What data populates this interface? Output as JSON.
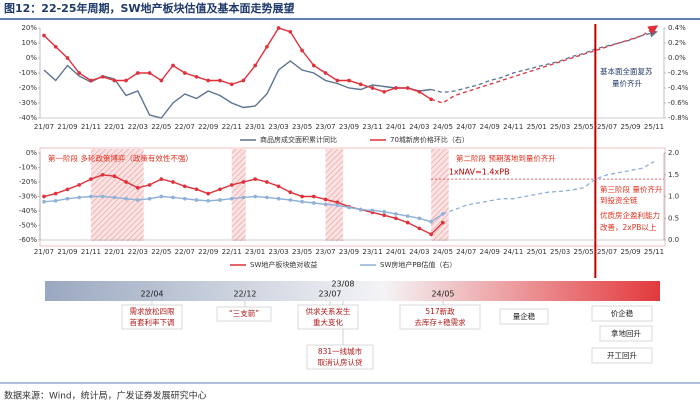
{
  "header": {
    "title": "图12：22-25年周期，SW地产板块估值及基本面走势展望"
  },
  "chart_data": [
    {
      "type": "line",
      "categories": [
        "21/07",
        null,
        "21/09",
        null,
        "21/11",
        null,
        "22/01",
        null,
        "22/03",
        null,
        "22/05",
        null,
        "22/07",
        null,
        "22/09",
        null,
        "22/11",
        null,
        "23/01",
        null,
        "23/03",
        null,
        "23/05",
        null,
        "23/07",
        null,
        "23/09",
        null,
        "23/11",
        null,
        "24/01",
        null,
        "24/03",
        null,
        "24/05",
        null,
        "24/07",
        null,
        "24/09",
        null,
        "24/11",
        null,
        "25/01",
        null,
        "25/03",
        null,
        "25/05",
        null,
        "25/07",
        null,
        "25/09",
        null,
        "25/11"
      ],
      "series": [
        {
          "name": "商品房成交面积累计同比",
          "color": "#5a7391",
          "values": [
            -8,
            -15,
            -5,
            -12,
            -16,
            -12,
            -14,
            -25,
            -22,
            -38,
            -40,
            -30,
            -24,
            -27,
            -22,
            -25,
            -30,
            -33,
            -32,
            -24,
            -8,
            -2,
            -8,
            -10,
            -15,
            -17,
            -20,
            -21,
            -18,
            -19,
            -20,
            -20,
            -22,
            -21,
            null,
            null,
            null,
            null,
            null,
            null,
            null,
            null,
            null,
            null,
            null,
            null,
            null,
            null,
            null,
            null,
            null,
            null,
            null
          ],
          "forecast": [
            null,
            null,
            null,
            null,
            null,
            null,
            null,
            null,
            null,
            null,
            null,
            null,
            null,
            null,
            null,
            null,
            null,
            null,
            null,
            null,
            null,
            null,
            null,
            null,
            null,
            null,
            null,
            null,
            null,
            null,
            null,
            null,
            null,
            -21,
            -23,
            -22,
            -20,
            -18,
            -15,
            -13,
            -10,
            -8,
            -6,
            -4,
            -2,
            1,
            3,
            6,
            8,
            10,
            12,
            15,
            17
          ]
        },
        {
          "name": "70城新房价格环比（右）",
          "color": "#e0303a",
          "axis": "y2",
          "values": [
            0.3,
            0.15,
            0,
            -0.2,
            -0.3,
            -0.25,
            -0.3,
            -0.3,
            -0.2,
            -0.2,
            -0.3,
            -0.1,
            -0.2,
            -0.25,
            -0.3,
            -0.3,
            -0.35,
            -0.3,
            -0.1,
            0.15,
            0.4,
            0.35,
            0.1,
            -0.1,
            -0.2,
            -0.3,
            -0.3,
            -0.35,
            -0.4,
            -0.45,
            -0.4,
            -0.4,
            -0.45,
            -0.55,
            null,
            null,
            null,
            null,
            null,
            null,
            null,
            null,
            null,
            null,
            null,
            null,
            null,
            null,
            null,
            null,
            null,
            null,
            null
          ],
          "forecast": [
            null,
            null,
            null,
            null,
            null,
            null,
            null,
            null,
            null,
            null,
            null,
            null,
            null,
            null,
            null,
            null,
            null,
            null,
            null,
            null,
            null,
            null,
            null,
            null,
            null,
            null,
            null,
            null,
            null,
            null,
            null,
            null,
            null,
            -0.55,
            -0.6,
            -0.5,
            -0.45,
            -0.4,
            -0.35,
            -0.3,
            -0.25,
            -0.2,
            -0.15,
            -0.1,
            -0.05,
            0,
            0.05,
            0.1,
            0.15,
            0.2,
            0.25,
            0.3,
            0.4
          ]
        }
      ],
      "ylim": [
        -40,
        20
      ],
      "yticks": [
        {
          "value": -40,
          "label": "-40%"
        },
        {
          "value": -30,
          "label": "-30%"
        },
        {
          "value": -20,
          "label": "-20%"
        },
        {
          "value": -10,
          "label": "-10%"
        },
        {
          "value": 0,
          "label": "0%"
        },
        {
          "value": 10,
          "label": "10%"
        },
        {
          "value": 20,
          "label": "20%"
        }
      ],
      "y2lim": [
        -0.8,
        0.4
      ],
      "y2ticks": [
        {
          "value": -0.8,
          "label": "-0.8%"
        },
        {
          "value": -0.6,
          "label": "-0.6%"
        },
        {
          "value": -0.4,
          "label": "-0.4%"
        },
        {
          "value": -0.2,
          "label": "-0.2%"
        },
        {
          "value": 0,
          "label": "0.0%"
        },
        {
          "value": 0.2,
          "label": "0.2%"
        },
        {
          "value": 0.4,
          "label": "0.4%"
        }
      ],
      "grid": false,
      "annotations": [
        "基本面全面复苏",
        "量价齐升"
      ]
    },
    {
      "type": "line",
      "categories": [
        "21/07",
        null,
        "21/09",
        null,
        "21/11",
        null,
        "22/01",
        null,
        "22/03",
        null,
        "22/05",
        null,
        "22/07",
        null,
        "22/09",
        null,
        "22/11",
        null,
        "23/01",
        null,
        "23/03",
        null,
        "23/05",
        null,
        "23/07",
        null,
        "23/09",
        null,
        "23/11",
        null,
        "24/01",
        null,
        "24/03",
        null,
        "24/05",
        null,
        "24/07",
        null,
        "24/09",
        null,
        "24/11",
        null,
        "25/01",
        null,
        "25/03",
        null,
        "25/05",
        null,
        "25/07",
        null,
        "25/09",
        null,
        "25/11"
      ],
      "series": [
        {
          "name": "SW地产板块绝对收益",
          "color": "#e0303a",
          "values": [
            -30,
            -28,
            -25,
            -22,
            -18,
            -15,
            -16,
            -20,
            -24,
            -22,
            -18,
            -20,
            -23,
            -25,
            -28,
            -25,
            -22,
            -20,
            -18,
            -20,
            -23,
            -27,
            -30,
            -30,
            -32,
            -34,
            -37,
            -39,
            -41,
            -43,
            -45,
            -48,
            -52,
            -56,
            -48,
            null,
            null,
            null,
            null,
            null,
            null,
            null,
            null,
            null,
            null,
            null,
            null,
            null,
            null,
            null,
            null,
            null,
            null
          ]
        },
        {
          "name": "SW房地产PB估值（右）",
          "color": "#8fb0d8",
          "axis": "y2",
          "values": [
            0.88,
            0.9,
            0.95,
            0.98,
            1,
            1,
            0.98,
            0.95,
            0.92,
            0.95,
            1,
            0.98,
            0.95,
            0.92,
            0.9,
            0.92,
            0.95,
            0.98,
            1,
            0.98,
            0.95,
            0.92,
            0.88,
            0.85,
            0.82,
            0.8,
            0.75,
            0.7,
            0.68,
            0.65,
            0.6,
            0.55,
            0.5,
            0.42,
            0.6,
            null,
            null,
            null,
            null,
            null,
            null,
            null,
            null,
            null,
            null,
            null,
            null,
            null,
            null,
            null,
            null,
            null,
            null
          ],
          "forecast": [
            null,
            null,
            null,
            null,
            null,
            null,
            null,
            null,
            null,
            null,
            null,
            null,
            null,
            null,
            null,
            null,
            null,
            null,
            null,
            null,
            null,
            null,
            null,
            null,
            null,
            null,
            null,
            null,
            null,
            null,
            null,
            null,
            null,
            null,
            0.6,
            0.7,
            0.8,
            0.85,
            0.9,
            0.95,
            0.95,
            1,
            1.05,
            1.1,
            1.12,
            1.15,
            1.2,
            1.4,
            1.5,
            1.55,
            1.6,
            1.65,
            1.8
          ]
        }
      ],
      "ylim": [
        -60,
        0
      ],
      "yticks": [
        {
          "value": -60,
          "label": "-60%"
        },
        {
          "value": -50,
          "label": "-50%"
        },
        {
          "value": -40,
          "label": "-40%"
        },
        {
          "value": -30,
          "label": "-30%"
        },
        {
          "value": -20,
          "label": "-20%"
        },
        {
          "value": -10,
          "label": "-10%"
        },
        {
          "value": 0,
          "label": "0%"
        }
      ],
      "y2lim": [
        0,
        2
      ],
      "y2ticks": [
        {
          "value": 0,
          "label": "0.0"
        },
        0.5,
        {
          "value": 1,
          "label": "1.0"
        },
        1.5,
        {
          "value": 2,
          "label": "2.0"
        }
      ],
      "grid": false,
      "reference_line": {
        "value": 1.4,
        "label": "1xNAV=1.4xPB"
      },
      "annotations": [
        "第一阶段  多轮政策博弈（政策有效性不强）",
        "第二阶段  预期落地到量价齐升",
        "第三阶段 量价齐升",
        "到投资全链",
        "优质房企盈利能力",
        "改善，2xPB以上"
      ]
    }
  ],
  "timeline": {
    "dates": [
      "22/04",
      "22/12",
      "23/07",
      "23/08",
      "24/05"
    ],
    "events": [
      [
        "需求放松四限",
        "首套利率下调"
      ],
      [
        "“三支箭”"
      ],
      [
        "供求关系发生",
        "重大变化"
      ],
      [
        "831一线城市",
        "取消认房认贷"
      ],
      [
        "517新政",
        "去库存+稳需求"
      ],
      [
        "量企稳"
      ],
      [
        "价企稳"
      ],
      [
        "拿地回升"
      ],
      [
        "开工回升"
      ]
    ]
  },
  "source": "数据来源：Wind，统计局，广发证券发展研究中心"
}
